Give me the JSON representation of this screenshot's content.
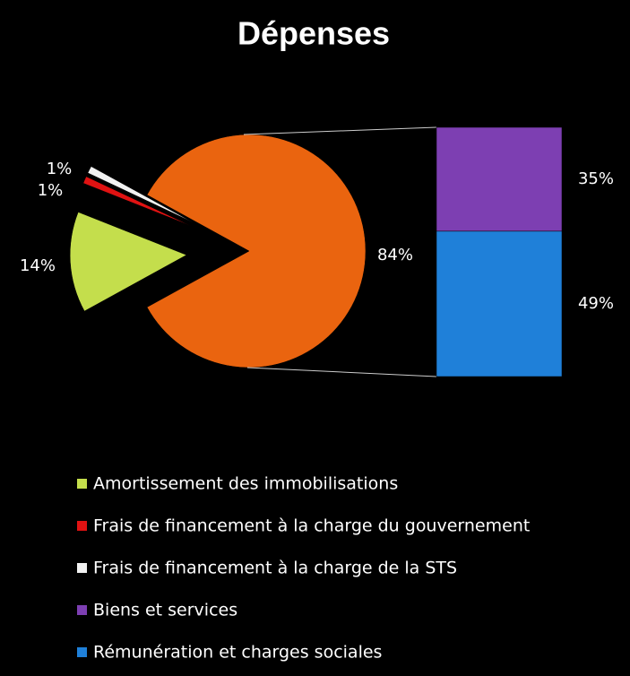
{
  "chart_data": {
    "type": "pie",
    "title": "Dépenses",
    "categories": [
      "Amortissement des immobilisations",
      "Frais de financement à la charge du gouvernement",
      "Frais de financement à la charge de la STS",
      null
    ],
    "values": [
      14,
      1,
      1,
      84
    ],
    "value_labels": [
      "14%",
      "1%",
      "1%",
      "84%"
    ],
    "colors": [
      "#c4de4c",
      "#e01212",
      "#f2f2f2",
      "#ea640f"
    ],
    "breakdown": {
      "categories": [
        "Biens et services",
        "Rémunération et charges sociales"
      ],
      "values": [
        35,
        49
      ],
      "value_labels": [
        "35%",
        "49%"
      ],
      "colors": [
        "#7d3fb2",
        "#1f80d9"
      ]
    },
    "legend": "bottom"
  }
}
